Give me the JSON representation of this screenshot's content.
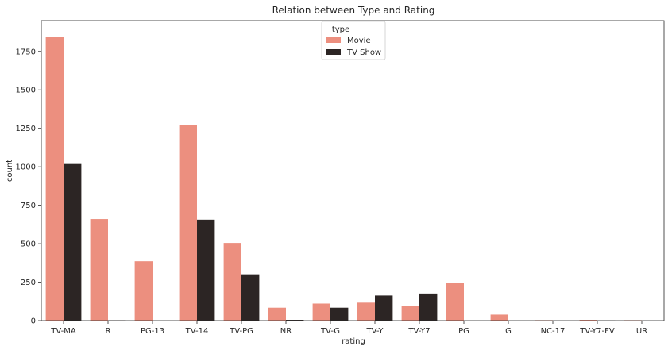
{
  "chart_data": {
    "type": "bar",
    "title": "Relation between Type and Rating",
    "xlabel": "rating",
    "ylabel": "count",
    "ylim": [
      0,
      1950
    ],
    "yticks": [
      0,
      250,
      500,
      750,
      1000,
      1250,
      1500,
      1750
    ],
    "grid": false,
    "legend": {
      "title": "type",
      "placement": "top-center"
    },
    "categories": [
      "TV-MA",
      "R",
      "PG-13",
      "TV-14",
      "TV-PG",
      "NR",
      "TV-G",
      "TV-Y",
      "TV-Y7",
      "PG",
      "G",
      "NC-17",
      "TV-Y7-FV",
      "UR"
    ],
    "series": [
      {
        "name": "Movie",
        "color": "#ec8f7f",
        "values": [
          1845,
          660,
          386,
          1272,
          505,
          84,
          111,
          117,
          95,
          247,
          39,
          3,
          5,
          3
        ]
      },
      {
        "name": "TV Show",
        "color": "#2c2524",
        "values": [
          1018,
          2,
          0,
          656,
          301,
          5,
          84,
          163,
          176,
          0,
          0,
          0,
          1,
          0
        ]
      }
    ]
  }
}
